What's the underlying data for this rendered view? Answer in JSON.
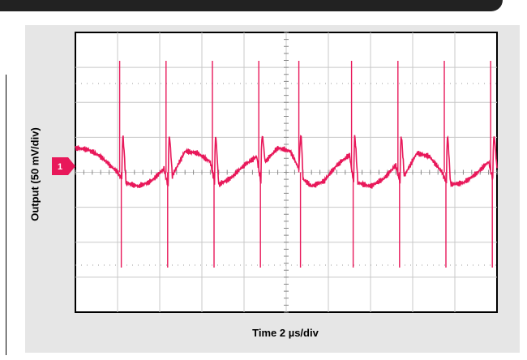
{
  "chart_data": {
    "type": "line",
    "ylabel": "Output (50 mV/div)",
    "xlabel": "Time 2 µs/div",
    "channel_marker": "1",
    "grid": true,
    "divisions": {
      "x": 10,
      "y": 8
    },
    "trace_color": "#e8185a",
    "series": [
      {
        "x_divisions": [
          0.0,
          0.3,
          0.6,
          1.0,
          1.1,
          1.12,
          1.2,
          1.5,
          1.8,
          2.1,
          2.2,
          2.22,
          2.3,
          2.6,
          2.9,
          3.2,
          3.3,
          3.32,
          3.4,
          3.7,
          4.0,
          4.3,
          4.4,
          4.42,
          4.5,
          4.8,
          5.1,
          5.3,
          5.35,
          5.4,
          5.6,
          5.9,
          6.2,
          6.5,
          6.6,
          6.62,
          6.7,
          7.0,
          7.3,
          7.6,
          7.7,
          7.72,
          7.8,
          8.1,
          8.4,
          8.7,
          8.8,
          8.82,
          8.9,
          9.2,
          9.5,
          9.8,
          9.9,
          9.92,
          10.0
        ],
        "y_divisions": [
          0.7,
          0.65,
          0.45,
          0.0,
          -0.2,
          1.3,
          -0.3,
          -0.4,
          -0.25,
          0.1,
          -0.4,
          1.3,
          -0.1,
          0.6,
          0.55,
          0.3,
          -0.3,
          1.3,
          -0.35,
          -0.15,
          0.2,
          0.45,
          -0.3,
          1.3,
          0.3,
          0.7,
          0.6,
          0.1,
          1.3,
          -0.2,
          -0.4,
          -0.25,
          0.2,
          0.5,
          -0.3,
          1.3,
          -0.3,
          -0.4,
          -0.2,
          0.2,
          -0.3,
          1.3,
          -0.1,
          0.55,
          0.45,
          0.0,
          -0.3,
          1.3,
          -0.35,
          -0.3,
          -0.05,
          0.3,
          -0.2,
          1.3,
          0.1
        ]
      }
    ],
    "spike_positions_div": [
      1.05,
      2.15,
      3.25,
      4.35,
      5.3,
      6.55,
      7.65,
      8.75,
      9.85
    ]
  }
}
